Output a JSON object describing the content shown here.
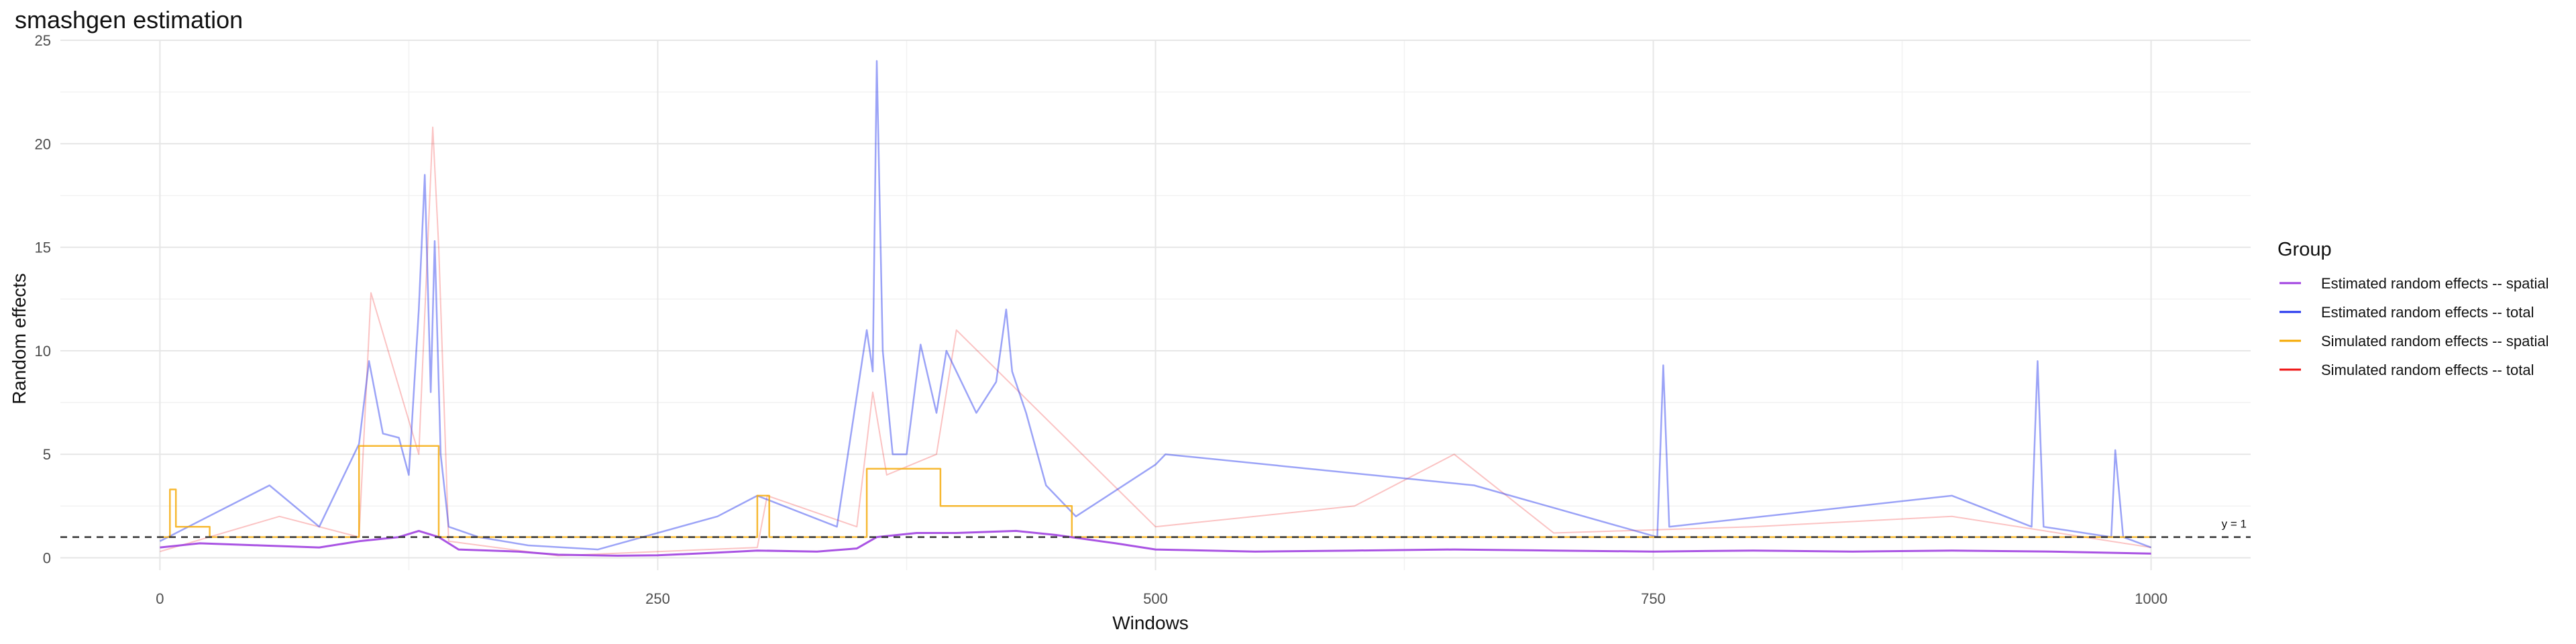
{
  "chart_data": {
    "type": "line",
    "title": "smashgen estimation",
    "xlabel": "Windows",
    "ylabel": "Random effects",
    "xlim": [
      -50,
      1050
    ],
    "ylim": [
      -0.6,
      25
    ],
    "x_ticks": [
      0,
      250,
      500,
      750,
      1000
    ],
    "y_ticks": [
      0,
      5,
      10,
      15,
      20,
      25
    ],
    "grid": true,
    "legend": {
      "title": "Group",
      "position": "right",
      "entries": [
        {
          "label": "Estimated random effects -- spatial",
          "color": "#a040e0"
        },
        {
          "label": "Estimated random effects -- total",
          "color": "#2233ee"
        },
        {
          "label": "Simulated random effects -- spatial",
          "color": "#f5a800"
        },
        {
          "label": "Simulated random effects -- total",
          "color": "#ee1111"
        }
      ]
    },
    "reference_line": {
      "y": 1,
      "label": "y = 1",
      "style": "dashed",
      "color": "#333333"
    },
    "series": [
      {
        "name": "Estimated random effects -- spatial",
        "color": "#a040e0",
        "x": [
          0,
          20,
          50,
          80,
          100,
          120,
          130,
          140,
          150,
          180,
          200,
          230,
          250,
          280,
          300,
          330,
          350,
          360,
          380,
          400,
          430,
          450,
          480,
          500,
          550,
          600,
          650,
          700,
          750,
          800,
          850,
          900,
          950,
          1000
        ],
        "y": [
          0.5,
          0.7,
          0.6,
          0.5,
          0.8,
          1.0,
          1.3,
          1.0,
          0.4,
          0.3,
          0.15,
          0.1,
          0.12,
          0.25,
          0.35,
          0.3,
          0.45,
          1.0,
          1.2,
          1.2,
          1.3,
          1.1,
          0.7,
          0.4,
          0.3,
          0.35,
          0.4,
          0.35,
          0.3,
          0.35,
          0.3,
          0.35,
          0.3,
          0.2
        ]
      },
      {
        "name": "Estimated random effects -- total",
        "color": "#2233ee",
        "x": [
          0,
          55,
          80,
          100,
          105,
          112,
          120,
          125,
          130,
          133,
          136,
          138,
          141,
          145,
          160,
          185,
          220,
          280,
          300,
          340,
          355,
          358,
          360,
          363,
          368,
          375,
          382,
          390,
          395,
          400,
          410,
          420,
          425,
          428,
          435,
          445,
          460,
          500,
          505,
          660,
          752,
          755,
          758,
          900,
          940,
          943,
          946,
          980,
          982,
          986,
          1000
        ],
        "y": [
          0.8,
          3.5,
          1.5,
          5.5,
          9.5,
          6.0,
          5.8,
          4.0,
          12.0,
          18.5,
          8.0,
          15.3,
          5.0,
          1.5,
          1.0,
          0.6,
          0.4,
          2.0,
          3.0,
          1.5,
          11.0,
          9.0,
          24.0,
          10.0,
          5.0,
          5.0,
          10.3,
          7.0,
          10.0,
          9.0,
          7.0,
          8.5,
          12.0,
          9.0,
          7.0,
          3.5,
          2.0,
          4.5,
          5.0,
          3.5,
          1.0,
          9.3,
          1.5,
          3.0,
          1.5,
          9.5,
          1.5,
          1.0,
          5.2,
          1.0,
          0.5
        ]
      },
      {
        "name": "Simulated random effects -- spatial",
        "color": "#f5a800",
        "x": [
          0,
          5,
          5,
          8,
          8,
          25,
          25,
          100,
          100,
          140,
          140,
          300,
          300,
          306,
          306,
          355,
          355,
          392,
          392,
          458,
          458,
          1000
        ],
        "y": [
          1.0,
          1.0,
          3.3,
          3.3,
          1.5,
          1.5,
          1.0,
          1.0,
          5.4,
          5.4,
          1.0,
          1.0,
          3.0,
          3.0,
          1.0,
          1.0,
          4.3,
          4.3,
          2.5,
          2.5,
          1.0,
          1.0
        ]
      },
      {
        "name": "Simulated random effects -- total",
        "color": "#ee1111",
        "x": [
          0,
          60,
          100,
          106,
          130,
          137,
          140,
          145,
          200,
          300,
          305,
          350,
          358,
          365,
          390,
          400,
          500,
          600,
          650,
          700,
          800,
          900,
          1000
        ],
        "y": [
          0.3,
          2.0,
          1.0,
          12.8,
          5.0,
          20.8,
          15.0,
          0.8,
          0.1,
          0.5,
          3.0,
          1.5,
          8.0,
          4.0,
          5.0,
          11.0,
          1.5,
          2.5,
          5.0,
          1.2,
          1.5,
          2.0,
          0.5
        ]
      }
    ]
  }
}
